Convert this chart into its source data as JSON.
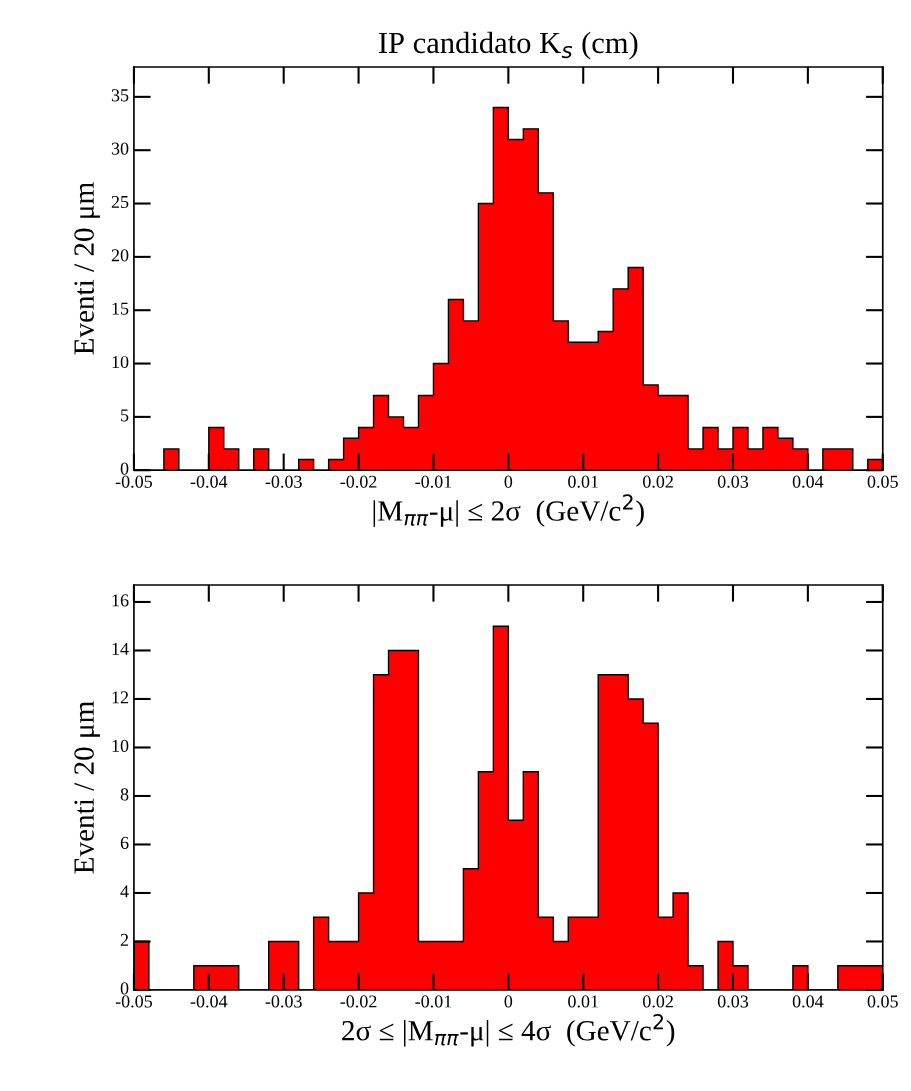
{
  "chart_data": [
    {
      "type": "histogram",
      "title": "IP candidato K$_{s}$ (cm)",
      "xlabel": "|M$_{ππ}$-μ| ≤ 2σ  (GeV/c$^{2}$)",
      "ylabel": "Eventi / 20 μm",
      "color": "#ff0000",
      "bins": [
        -0.05,
        -0.048,
        -0.046,
        -0.044,
        -0.042,
        -0.04,
        -0.038,
        -0.036,
        -0.034,
        -0.032,
        -0.03,
        -0.028,
        -0.026,
        -0.024,
        -0.022,
        -0.02,
        -0.018,
        -0.016,
        -0.014,
        -0.012,
        -0.01,
        -0.008,
        -0.006,
        -0.004,
        -0.002,
        0,
        0.002,
        0.004,
        0.006,
        0.008,
        0.01,
        0.012,
        0.014,
        0.016,
        0.018,
        0.02,
        0.022,
        0.024,
        0.026,
        0.028,
        0.03,
        0.032,
        0.034,
        0.036,
        0.038,
        0.04,
        0.042,
        0.044,
        0.046,
        0.048,
        0.05
      ],
      "values": [
        0,
        0,
        2,
        0,
        0,
        4,
        2,
        0,
        2,
        0,
        0,
        1,
        0,
        1,
        3,
        4,
        7,
        5,
        4,
        7,
        10,
        16,
        14,
        25,
        34,
        31,
        32,
        26,
        14,
        12,
        12,
        13,
        17,
        19,
        8,
        7,
        7,
        2,
        4,
        2,
        4,
        2,
        4,
        3,
        2,
        0,
        2,
        2,
        0,
        1
      ],
      "xlim": [
        -0.05,
        0.05
      ],
      "xticks": [
        -0.05,
        -0.04,
        -0.03,
        -0.02,
        -0.01,
        0,
        0.01,
        0.02,
        0.03,
        0.04,
        0.05
      ],
      "ylim": [
        0,
        37.8
      ],
      "yticks": [
        0,
        5,
        10,
        15,
        20,
        25,
        30,
        35
      ],
      "grid": false,
      "legend": false
    },
    {
      "type": "histogram",
      "xlabel": "2σ ≤ |M$_{ππ}$-μ| ≤ 4σ  (GeV/c$^{2}$)",
      "ylabel": "Eventi / 20 μm",
      "color": "#ff0000",
      "bins": [
        -0.05,
        -0.048,
        -0.046,
        -0.044,
        -0.042,
        -0.04,
        -0.038,
        -0.036,
        -0.034,
        -0.032,
        -0.03,
        -0.028,
        -0.026,
        -0.024,
        -0.022,
        -0.02,
        -0.018,
        -0.016,
        -0.014,
        -0.012,
        -0.01,
        -0.008,
        -0.006,
        -0.004,
        -0.002,
        0,
        0.002,
        0.004,
        0.006,
        0.008,
        0.01,
        0.012,
        0.014,
        0.016,
        0.018,
        0.02,
        0.022,
        0.024,
        0.026,
        0.028,
        0.03,
        0.032,
        0.034,
        0.036,
        0.038,
        0.04,
        0.042,
        0.044,
        0.046,
        0.048,
        0.05
      ],
      "values": [
        2,
        0,
        0,
        0,
        1,
        1,
        1,
        0,
        0,
        2,
        2,
        0,
        3,
        2,
        2,
        4,
        13,
        14,
        14,
        2,
        2,
        2,
        5,
        9,
        15,
        7,
        9,
        3,
        2,
        3,
        3,
        13,
        13,
        12,
        11,
        3,
        4,
        1,
        0,
        2,
        1,
        0,
        0,
        0,
        1,
        0,
        0,
        1,
        1,
        1
      ],
      "xlim": [
        -0.05,
        0.05
      ],
      "xticks": [
        -0.05,
        -0.04,
        -0.03,
        -0.02,
        -0.01,
        0,
        0.01,
        0.02,
        0.03,
        0.04,
        0.05
      ],
      "ylim": [
        0,
        16.7
      ],
      "yticks": [
        0,
        2,
        4,
        6,
        8,
        10,
        12,
        14,
        16
      ],
      "grid": false,
      "legend": false
    }
  ]
}
